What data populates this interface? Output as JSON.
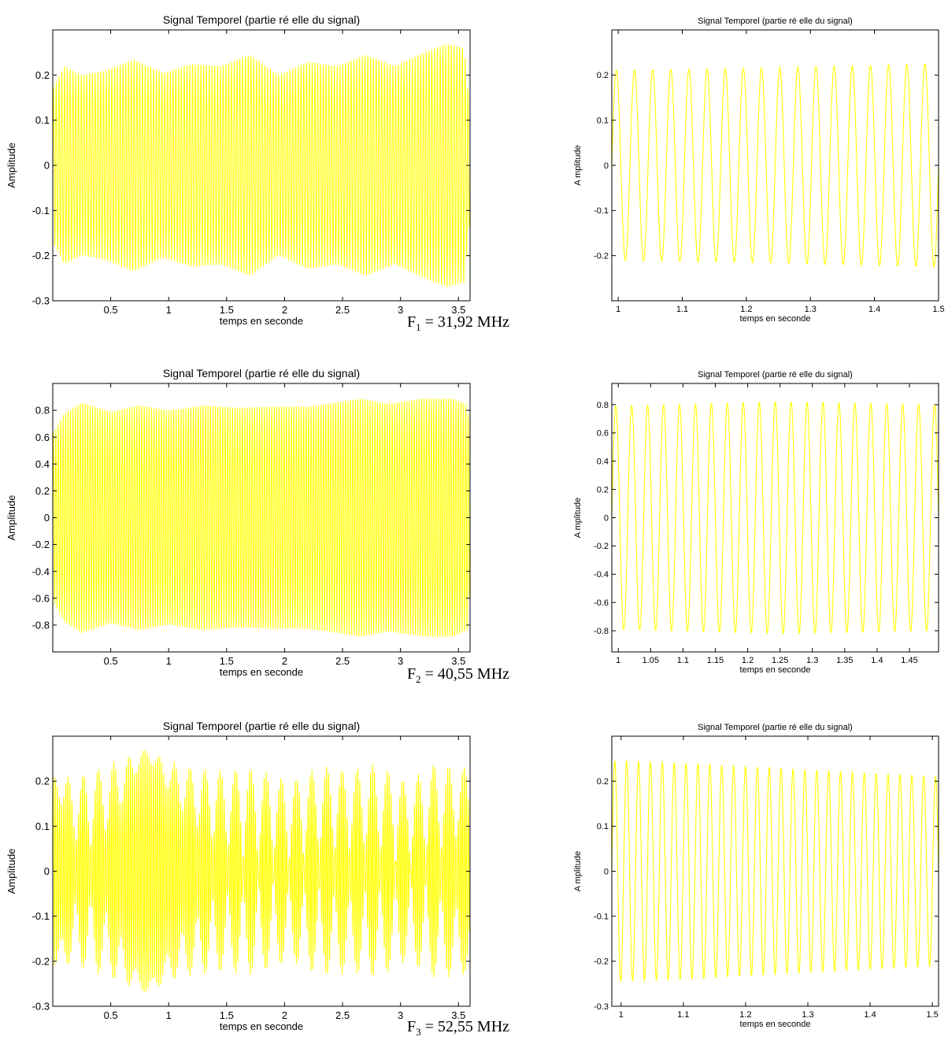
{
  "figure_colors": {
    "background": "#ffffff",
    "signal": "#ffff00",
    "axes": "#000000"
  },
  "captions": [
    {
      "letter": "F",
      "sub": "1",
      "text": " = 31,92 MHz"
    },
    {
      "letter": "F",
      "sub": "2",
      "text": " = 40,55 MHz"
    },
    {
      "letter": "F",
      "sub": "3",
      "text": " = 52,55 MHz"
    }
  ],
  "chart_data": [
    {
      "type": "line",
      "id": "f1-full",
      "title": "Signal Temporel (partie ré elle du signal)",
      "xlabel": "temps en seconde",
      "ylabel": "Amplitude",
      "xlim": [
        0,
        3.6
      ],
      "ylim": [
        -0.3,
        0.3
      ],
      "xticks": [
        0.5,
        1,
        1.5,
        2,
        2.5,
        3,
        3.5
      ],
      "xtick_labels": [
        "0.5",
        "1",
        "1.5",
        "2",
        "2.5",
        "3",
        "3.5"
      ],
      "yticks": [
        -0.3,
        -0.2,
        -0.1,
        0,
        0.1,
        0.2
      ],
      "ytick_labels": [
        "-0.3",
        "-0.2",
        "-0.1",
        "0",
        "0.1",
        "0.2"
      ],
      "grid": false,
      "color": "#ffff00",
      "series": [
        {
          "signal": "amplitude-modulated oscillation",
          "carrier_cycles_shown": 150,
          "envelope_x": [
            0,
            0.1,
            0.25,
            0.45,
            0.7,
            0.95,
            1.2,
            1.45,
            1.7,
            1.95,
            2.2,
            2.45,
            2.7,
            2.95,
            3.2,
            3.4,
            3.55,
            3.6
          ],
          "envelope_y": [
            0.17,
            0.22,
            0.2,
            0.21,
            0.235,
            0.205,
            0.225,
            0.22,
            0.245,
            0.2,
            0.23,
            0.22,
            0.245,
            0.22,
            0.25,
            0.27,
            0.26,
            0.12
          ]
        }
      ]
    },
    {
      "type": "line",
      "id": "f1-zoom",
      "title": "Signal Temporel (partie ré elle du signal)",
      "xlabel": "temps en seconde",
      "ylabel": "A mplitude",
      "xlim": [
        0.99,
        1.5
      ],
      "ylim": [
        -0.3,
        0.3
      ],
      "xticks": [
        1,
        1.1,
        1.2,
        1.3,
        1.4,
        1.5
      ],
      "xtick_labels": [
        "1",
        "1.1",
        "1.2",
        "1.3",
        "1.4",
        "1.5"
      ],
      "yticks": [
        -0.2,
        -0.1,
        0,
        0.1,
        0.2
      ],
      "ytick_labels": [
        "-0.2",
        "-0.1",
        "0",
        "0.1",
        "0.2"
      ],
      "grid": false,
      "color": "#ffff00",
      "series": [
        {
          "signal": "sinusoid",
          "carrier_cycles_shown": 18,
          "envelope_x": [
            0.99,
            1.2,
            1.5
          ],
          "envelope_y": [
            0.21,
            0.215,
            0.225
          ]
        }
      ]
    },
    {
      "type": "line",
      "id": "f2-full",
      "title": "Signal Temporel (partie ré elle du signal)",
      "xlabel": "temps en seconde",
      "ylabel": "Amplitude",
      "xlim": [
        0,
        3.6
      ],
      "ylim": [
        -1.0,
        1.0
      ],
      "xticks": [
        0.5,
        1,
        1.5,
        2,
        2.5,
        3,
        3.5
      ],
      "xtick_labels": [
        "0.5",
        "1",
        "1.5",
        "2",
        "2.5",
        "3",
        "3.5"
      ],
      "yticks": [
        -0.8,
        -0.6,
        -0.4,
        -0.2,
        0,
        0.2,
        0.4,
        0.6,
        0.8
      ],
      "ytick_labels": [
        "-0.8",
        "-0.6",
        "-0.4",
        "-0.2",
        "0",
        "0.2",
        "0.4",
        "0.6",
        "0.8"
      ],
      "grid": false,
      "color": "#ffff00",
      "series": [
        {
          "signal": "amplitude-modulated oscillation",
          "carrier_cycles_shown": 170,
          "envelope_x": [
            0,
            0.1,
            0.25,
            0.5,
            0.75,
            1.0,
            1.3,
            1.6,
            1.9,
            2.2,
            2.45,
            2.65,
            2.9,
            3.2,
            3.45,
            3.58,
            3.6
          ],
          "envelope_y": [
            0.62,
            0.78,
            0.86,
            0.79,
            0.84,
            0.8,
            0.84,
            0.82,
            0.83,
            0.83,
            0.86,
            0.89,
            0.85,
            0.89,
            0.89,
            0.84,
            0.5
          ]
        }
      ]
    },
    {
      "type": "line",
      "id": "f2-zoom",
      "title": "Signal Temporel (partie ré elle du signal)",
      "xlabel": "temps en seconde",
      "ylabel": "A mplitude",
      "xlim": [
        0.99,
        1.495
      ],
      "ylim": [
        -0.95,
        0.95
      ],
      "xticks": [
        1,
        1.05,
        1.1,
        1.15,
        1.2,
        1.25,
        1.3,
        1.35,
        1.4,
        1.45
      ],
      "xtick_labels": [
        "1",
        "1.05",
        "1.1",
        "1.15",
        "1.2",
        "1.25",
        "1.3",
        "1.35",
        "1.4",
        "1.45"
      ],
      "yticks": [
        -0.8,
        -0.6,
        -0.4,
        -0.2,
        0,
        0.2,
        0.4,
        0.6,
        0.8
      ],
      "ytick_labels": [
        "-0.8",
        "-0.6",
        "-0.4",
        "-0.2",
        "0",
        "0.2",
        "0.4",
        "0.6",
        "0.8"
      ],
      "grid": false,
      "color": "#ffff00",
      "series": [
        {
          "signal": "sinusoid",
          "carrier_cycles_shown": 20.5,
          "envelope_x": [
            0.99,
            1.25,
            1.495
          ],
          "envelope_y": [
            0.79,
            0.82,
            0.8
          ]
        }
      ]
    },
    {
      "type": "line",
      "id": "f3-full",
      "title": "Signal Temporel (partie ré elle du signal)",
      "xlabel": "temps en seconde",
      "ylabel": "Amplitude",
      "xlim": [
        0,
        3.6
      ],
      "ylim": [
        -0.3,
        0.3
      ],
      "xticks": [
        0.5,
        1,
        1.5,
        2,
        2.5,
        3,
        3.5
      ],
      "xtick_labels": [
        "0.5",
        "1",
        "1.5",
        "2",
        "2.5",
        "3",
        "3.5"
      ],
      "yticks": [
        -0.3,
        -0.2,
        -0.1,
        0,
        0.1,
        0.2
      ],
      "ytick_labels": [
        "-0.3",
        "-0.2",
        "-0.1",
        "0",
        "0.1",
        "0.2"
      ],
      "grid": false,
      "color": "#ffff00",
      "series": [
        {
          "signal": "beating oscillation",
          "carrier_cycles_shown": 200,
          "envelope_x": [
            0,
            0.2,
            0.5,
            0.8,
            1.1,
            1.45,
            1.75,
            2.05,
            2.3,
            2.55,
            2.8,
            3.05,
            3.3,
            3.6
          ],
          "envelope_y": [
            0.21,
            0.21,
            0.24,
            0.27,
            0.235,
            0.225,
            0.23,
            0.2,
            0.235,
            0.225,
            0.24,
            0.2,
            0.24,
            0.23
          ],
          "inner_x": [
            0,
            0.1,
            0.25,
            0.5,
            0.8,
            1.1,
            1.4,
            1.75,
            2.05,
            2.3,
            2.55,
            2.8,
            3.05,
            3.3,
            3.6
          ],
          "inner_y": [
            0.22,
            0.12,
            0.04,
            0.1,
            0.26,
            0.14,
            0.06,
            0.02,
            0.02,
            0.04,
            0.05,
            0.04,
            0.0,
            0.04,
            0.1
          ]
        }
      ]
    },
    {
      "type": "line",
      "id": "f3-zoom",
      "title": "Signal Temporel (partie ré elle du signal)",
      "xlabel": "temps en seconde",
      "ylabel": "A mplitude",
      "xlim": [
        0.985,
        1.51
      ],
      "ylim": [
        -0.3,
        0.3
      ],
      "xticks": [
        1,
        1.1,
        1.2,
        1.3,
        1.4,
        1.5
      ],
      "xtick_labels": [
        "1",
        "1.1",
        "1.2",
        "1.3",
        "1.4",
        "1.5"
      ],
      "yticks": [
        -0.3,
        -0.2,
        -0.1,
        0,
        0.1,
        0.2
      ],
      "ytick_labels": [
        "-0.3",
        "-0.2",
        "-0.1",
        "0",
        "0.1",
        "0.2"
      ],
      "grid": false,
      "color": "#ffff00",
      "series": [
        {
          "signal": "sinusoid",
          "carrier_cycles_shown": 27.5,
          "envelope_x": [
            0.985,
            1.1,
            1.3,
            1.51
          ],
          "envelope_y": [
            0.245,
            0.24,
            0.225,
            0.21
          ]
        }
      ]
    }
  ]
}
